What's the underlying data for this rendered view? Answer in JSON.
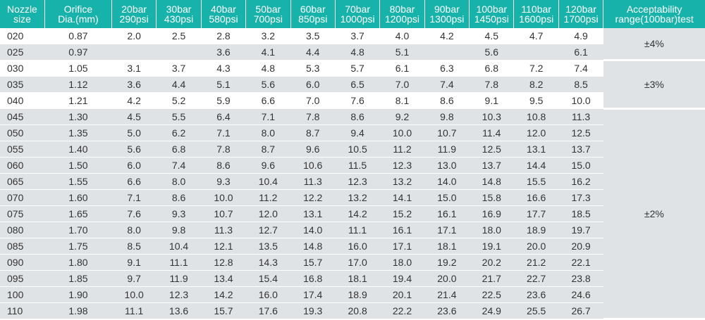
{
  "headers": [
    [
      "Nozzle",
      "size"
    ],
    [
      "Orifice",
      "Dia.(mm)"
    ],
    [
      "20bar",
      "290psi"
    ],
    [
      "30bar",
      "430psi"
    ],
    [
      "40bar",
      "580psi"
    ],
    [
      "50bar",
      "700psi"
    ],
    [
      "60bar",
      "850psi"
    ],
    [
      "70bar",
      "1000psi"
    ],
    [
      "80bar",
      "1200psi"
    ],
    [
      "90bar",
      "1300psi"
    ],
    [
      "100bar",
      "1450psi"
    ],
    [
      "110bar",
      "1600psi"
    ],
    [
      "120bar",
      "1700psi"
    ],
    [
      "Acceptability",
      "range(100bar)test"
    ]
  ],
  "rows": [
    [
      "020",
      "0.87",
      "2.0",
      "2.5",
      "2.8",
      "3.2",
      "3.5",
      "3.7",
      "4.0",
      "4.2",
      "4.5",
      "4.7",
      "4.9"
    ],
    [
      "025",
      "0.97",
      "",
      "",
      "3.6",
      "4.1",
      "4.4",
      "4.8",
      "5.1",
      "",
      "5.6",
      "",
      "6.1"
    ],
    [
      "030",
      "1.05",
      "3.1",
      "3.7",
      "4.3",
      "4.8",
      "5.3",
      "5.7",
      "6.1",
      "6.3",
      "6.8",
      "7.2",
      "7.4"
    ],
    [
      "035",
      "1.12",
      "3.6",
      "4.4",
      "5.1",
      "5.6",
      "6.0",
      "6.5",
      "7.0",
      "7.4",
      "7.8",
      "8.2",
      "8.5"
    ],
    [
      "040",
      "1.21",
      "4.2",
      "5.2",
      "5.9",
      "6.6",
      "7.0",
      "7.6",
      "8.1",
      "8.6",
      "9.1",
      "9.5",
      "10.0"
    ],
    [
      "045",
      "1.30",
      "4.5",
      "5.5",
      "6.4",
      "7.1",
      "7.8",
      "8.6",
      "9.2",
      "9.8",
      "10.3",
      "10.8",
      "11.3"
    ],
    [
      "050",
      "1.35",
      "5.0",
      "6.2",
      "7.1",
      "8.0",
      "8.7",
      "9.4",
      "10.0",
      "10.7",
      "11.4",
      "12.0",
      "12.5"
    ],
    [
      "055",
      "1.40",
      "5.6",
      "6.8",
      "7.8",
      "8.7",
      "9.6",
      "10.5",
      "11.2",
      "11.9",
      "12.5",
      "13.1",
      "13.7"
    ],
    [
      "060",
      "1.50",
      "6.0",
      "7.4",
      "8.6",
      "9.6",
      "10.6",
      "11.5",
      "12.3",
      "13.0",
      "13.7",
      "14.4",
      "15.0"
    ],
    [
      "065",
      "1.55",
      "6.6",
      "8.0",
      "9.3",
      "10.4",
      "11.3",
      "12.3",
      "13.2",
      "14.0",
      "14.8",
      "15.5",
      "16.2"
    ],
    [
      "070",
      "1.60",
      "7.1",
      "8.6",
      "10.0",
      "11.2",
      "12.2",
      "13.2",
      "14.1",
      "15.0",
      "15.8",
      "16.6",
      "17.3"
    ],
    [
      "075",
      "1.65",
      "7.6",
      "9.3",
      "10.7",
      "12.0",
      "13.1",
      "14.2",
      "15.2",
      "16.1",
      "16.9",
      "17.7",
      "18.5"
    ],
    [
      "080",
      "1.70",
      "8.0",
      "9.8",
      "11.3",
      "12.7",
      "14.0",
      "11.1",
      "16.1",
      "17.1",
      "18.0",
      "18.9",
      "19.7"
    ],
    [
      "085",
      "1.75",
      "8.5",
      "10.4",
      "12.1",
      "13.5",
      "14.8",
      "16.0",
      "17.1",
      "18.1",
      "19.1",
      "20.0",
      "20.9"
    ],
    [
      "090",
      "1.80",
      "9.1",
      "11.1",
      "12.8",
      "14.3",
      "15.7",
      "17.0",
      "18.0",
      "19.2",
      "20.2",
      "21.2",
      "22.1"
    ],
    [
      "095",
      "1.85",
      "9.7",
      "11.9",
      "13.4",
      "15.4",
      "16.8",
      "18.1",
      "19.4",
      "20.0",
      "21.7",
      "22.7",
      "23.8"
    ],
    [
      "100",
      "1.90",
      "10.0",
      "12.3",
      "14.2",
      "16.0",
      "17.4",
      "18.9",
      "20.1",
      "21.4",
      "22.5",
      "23.6",
      "24.6"
    ],
    [
      "110",
      "1.98",
      "11.1",
      "13.6",
      "15.7",
      "17.6",
      "19.3",
      "20.8",
      "22.2",
      "23.6",
      "24.9",
      "25.5",
      "26.7"
    ]
  ],
  "ranges": [
    "±4%",
    "±3%",
    "±2%"
  ],
  "colors": {
    "header_bg": "#17b3aa",
    "stripe": "#dfe3e6",
    "text": "#333333"
  }
}
